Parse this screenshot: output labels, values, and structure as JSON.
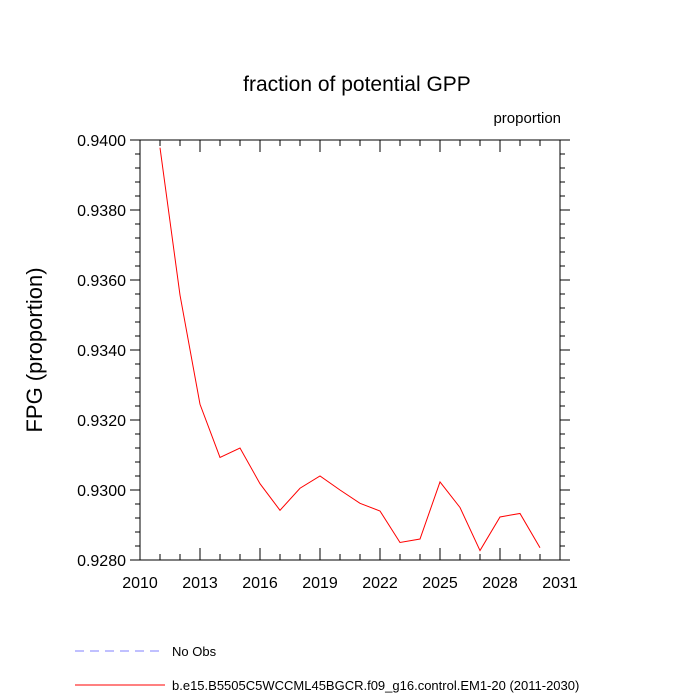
{
  "chart_data": {
    "type": "line",
    "title": "fraction of potential GPP",
    "units_label": "proportion",
    "ylabel": "FPG  (proportion)",
    "xlabel": "",
    "xlim": [
      2010,
      2031
    ],
    "ylim": [
      0.928,
      0.94
    ],
    "x_ticks": [
      2010,
      2013,
      2016,
      2019,
      2022,
      2025,
      2028,
      2031
    ],
    "x_tick_labels": [
      "2010",
      "2013",
      "2016",
      "2019",
      "2022",
      "2025",
      "2028",
      "2031"
    ],
    "y_ticks": [
      0.928,
      0.93,
      0.932,
      0.934,
      0.936,
      0.938,
      0.94
    ],
    "y_tick_labels": [
      "0.9280",
      "0.9300",
      "0.9320",
      "0.9340",
      "0.9360",
      "0.9380",
      "0.9400"
    ],
    "grid": false,
    "legend_position": "bottom",
    "series": [
      {
        "name": "b.e15.B5505C5WCCML45BGCR.f09_g16.control.EM1-20 (2011-2030)",
        "color": "#ff0000",
        "style": "solid",
        "x": [
          2011,
          2012,
          2013,
          2014,
          2015,
          2016,
          2017,
          2018,
          2019,
          2020,
          2021,
          2022,
          2023,
          2024,
          2025,
          2026,
          2027,
          2028,
          2029,
          2030
        ],
        "y": [
          0.93978,
          0.93557,
          0.93245,
          0.93093,
          0.9312,
          0.93018,
          0.92942,
          0.93005,
          0.9304,
          0.93,
          0.92962,
          0.9294,
          0.9285,
          0.9286,
          0.93023,
          0.9295,
          0.92827,
          0.92923,
          0.92933,
          0.92835
        ]
      },
      {
        "name": "No Obs",
        "color": "#8080ff",
        "style": "dashed",
        "x": [],
        "y": []
      }
    ]
  }
}
